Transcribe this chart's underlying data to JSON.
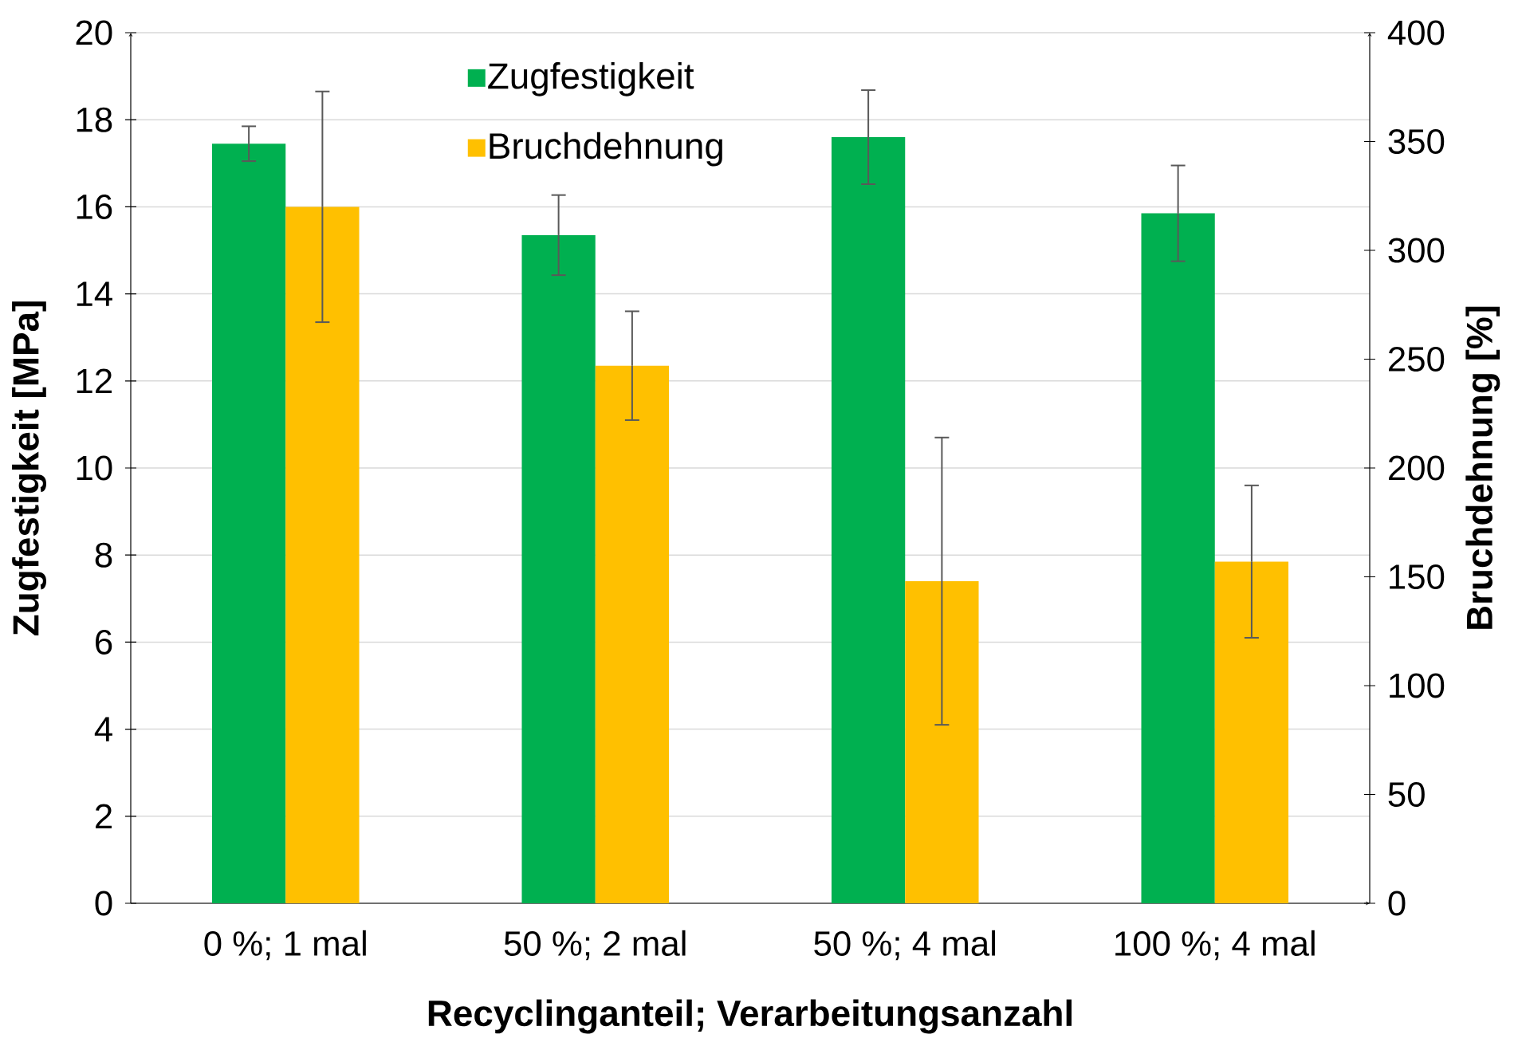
{
  "chart_data": {
    "type": "bar",
    "categories": [
      "0 %; 1 mal",
      "50 %; 2 mal",
      "50 %; 4 mal",
      "100 %; 4 mal"
    ],
    "series": [
      {
        "name": "Zugfestigkeit",
        "color": "#00b050",
        "values": [
          17.45,
          15.35,
          17.6,
          15.85
        ],
        "errors": [
          0.4,
          0.92,
          1.08,
          1.1
        ]
      },
      {
        "name": "Bruchdehnung",
        "color": "#ffc000",
        "axis": "y2",
        "values": [
          320,
          247,
          148,
          157
        ],
        "errors": [
          53,
          25,
          66,
          35
        ]
      }
    ],
    "xlabel": "Recyclinganteil; Verarbeitungsanzahl",
    "ylabel": "Zugfestigkeit [MPa]",
    "y2label": "Bruchdehnung [%]",
    "ylim": [
      0,
      20
    ],
    "yticks": [
      0,
      2,
      4,
      6,
      8,
      10,
      12,
      14,
      16,
      18,
      20
    ],
    "y2lim": [
      0,
      400
    ],
    "y2ticks": [
      0,
      50,
      100,
      150,
      200,
      250,
      300,
      350,
      400
    ],
    "grid": "y",
    "legend": "top"
  }
}
